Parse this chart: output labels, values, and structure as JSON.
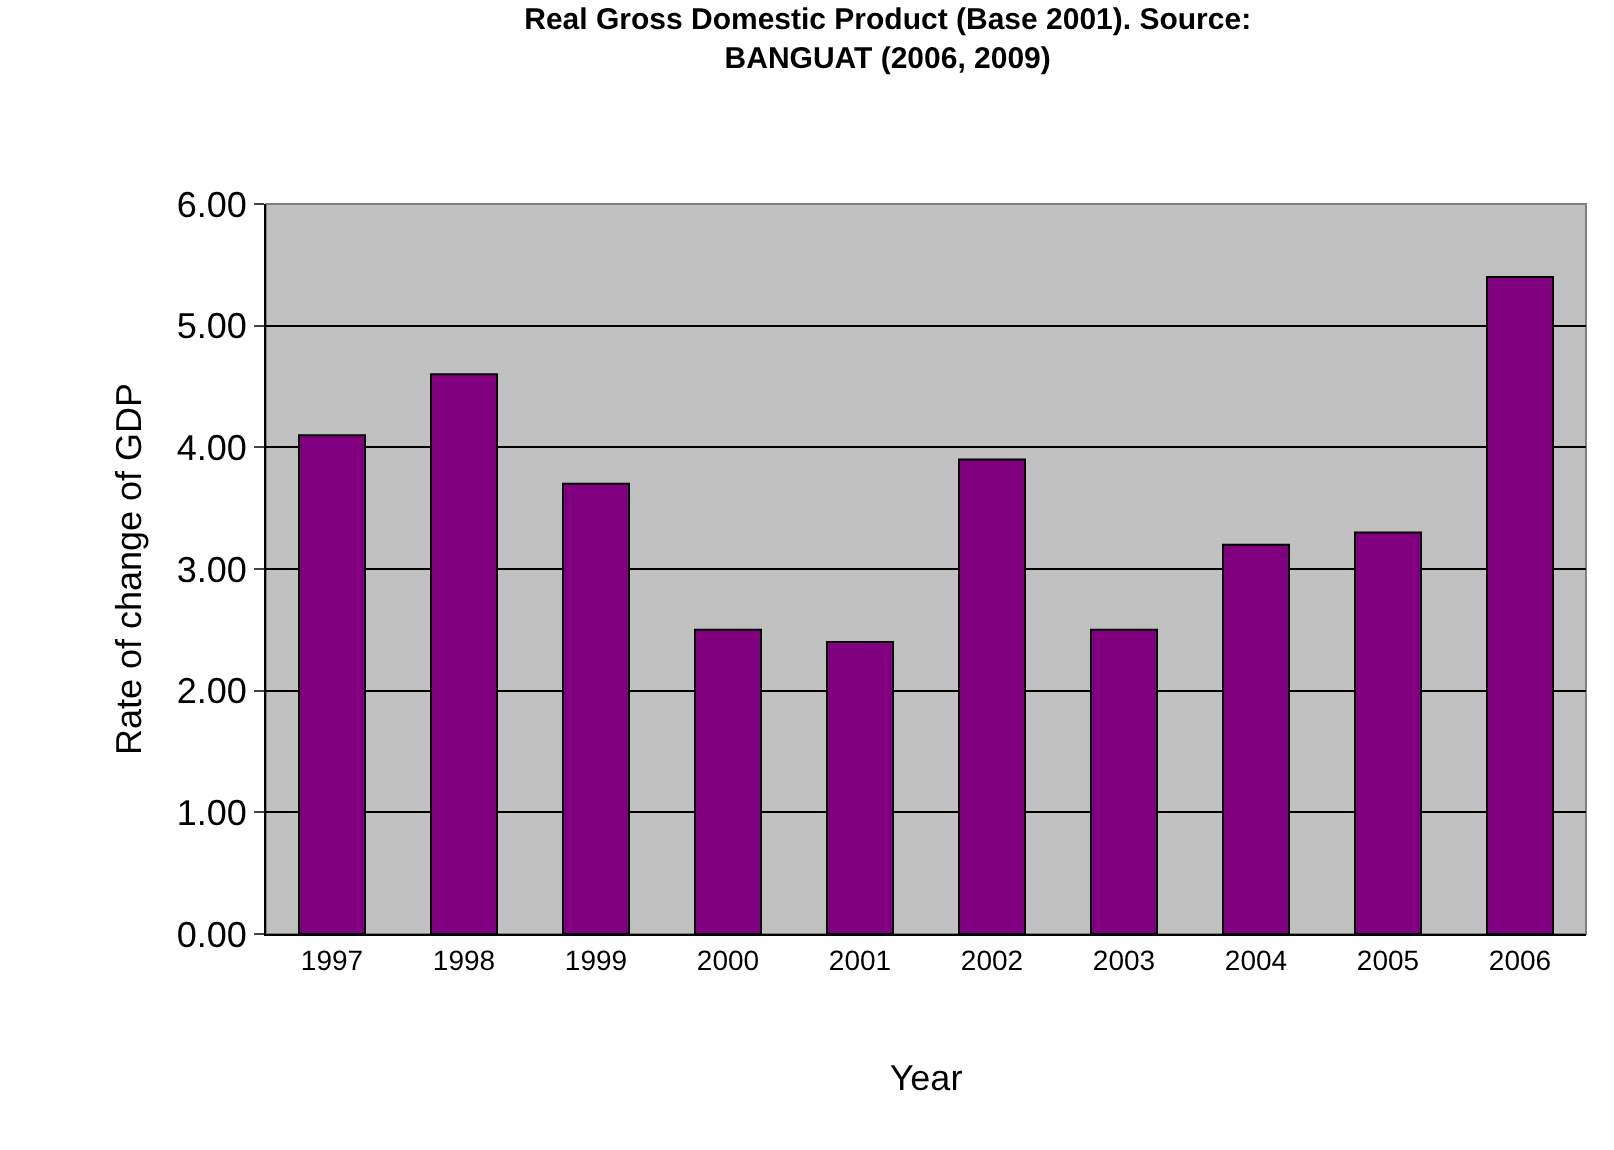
{
  "chart_data": {
    "type": "bar",
    "title": "Real Gross Domestic Product (Base 2001). Source: BANGUAT (2006, 2009)",
    "xlabel": "Year",
    "ylabel": "Rate of change of GDP",
    "categories": [
      "1997",
      "1998",
      "1999",
      "2000",
      "2001",
      "2002",
      "2003",
      "2004",
      "2005",
      "2006"
    ],
    "values": [
      4.1,
      4.6,
      3.7,
      2.5,
      2.4,
      3.9,
      2.5,
      3.2,
      3.3,
      5.4
    ],
    "color": "#800080",
    "ylim": [
      0,
      6
    ],
    "yticks": [
      {
        "value": 0,
        "label": "0.00"
      },
      {
        "value": 1,
        "label": "1.00"
      },
      {
        "value": 2,
        "label": "2.00"
      },
      {
        "value": 3,
        "label": "3.00"
      },
      {
        "value": 4,
        "label": "4.00"
      },
      {
        "value": 5,
        "label": "5.00"
      },
      {
        "value": 6,
        "label": "6.00"
      }
    ],
    "grid": "y"
  }
}
